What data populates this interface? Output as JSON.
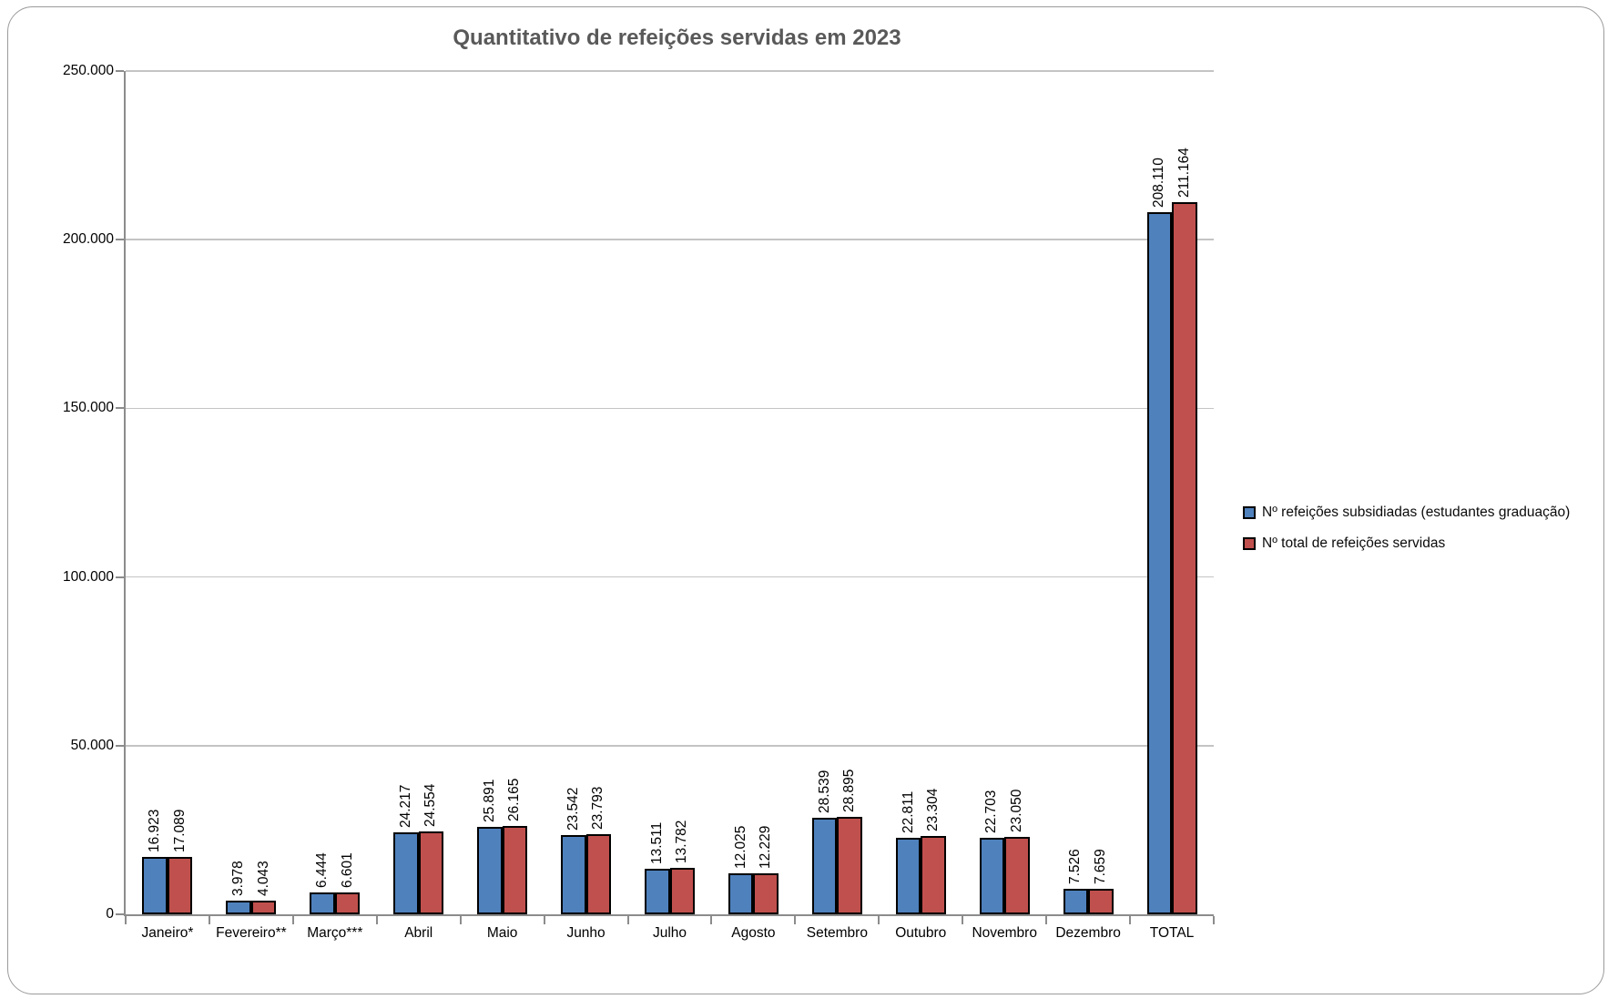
{
  "chart_data": {
    "type": "bar",
    "title": "Quantitativo de refeições servidas em 2023",
    "categories": [
      "Janeiro*",
      "Fevereiro**",
      "Março***",
      "Abril",
      "Maio",
      "Junho",
      "Julho",
      "Agosto",
      "Setembro",
      "Outubro",
      "Novembro",
      "Dezembro",
      "TOTAL"
    ],
    "series": [
      {
        "name": "Nº refeições subsidiadas (estudantes graduação)",
        "color": "#4F81BD",
        "values": [
          16923,
          3978,
          6444,
          24217,
          25891,
          23542,
          13511,
          12025,
          28539,
          22811,
          22703,
          7526,
          208110
        ],
        "labels": [
          "16.923",
          "3.978",
          "6.444",
          "24.217",
          "25.891",
          "23.542",
          "13.511",
          "12.025",
          "28.539",
          "22.811",
          "22.703",
          "7.526",
          "208.110"
        ]
      },
      {
        "name": "Nº total de refeições servidas",
        "color": "#C0504D",
        "values": [
          17089,
          4043,
          6601,
          24554,
          26165,
          23793,
          13782,
          12229,
          28895,
          23304,
          23050,
          7659,
          211164
        ],
        "labels": [
          "17.089",
          "4.043",
          "6.601",
          "24.554",
          "26.165",
          "23.793",
          "13.782",
          "12.229",
          "28.895",
          "23.304",
          "23.050",
          "7.659",
          "211.164"
        ]
      }
    ],
    "xlabel": "",
    "ylabel": "",
    "ylim": [
      0,
      250000
    ],
    "ytick_interval": 50000,
    "ytick_labels": [
      "0",
      "50.000",
      "100.000",
      "150.000",
      "200.000",
      "250.000"
    ],
    "grid": true,
    "legend_position": "right",
    "bar_border_color": "#000000"
  },
  "colors": {
    "title": "#595959",
    "axis": "#8c8c8c",
    "gridline": "#c4c4c4",
    "text": "#000000",
    "frame_border": "#9b9b9b",
    "background": "#FFFFFF"
  }
}
